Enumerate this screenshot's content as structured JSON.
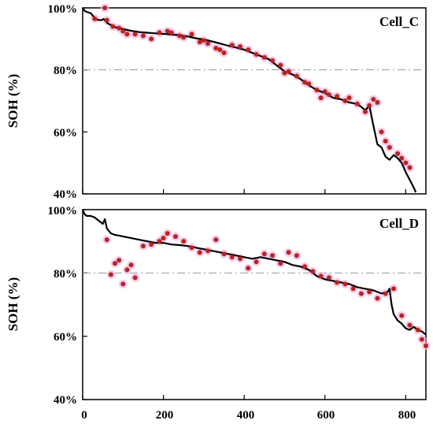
{
  "figure": {
    "x_tick_labels": [
      "0",
      "200",
      "400",
      "600",
      "800"
    ]
  },
  "colors": {
    "line": "#000000",
    "dots": "#b5261e",
    "dot_halo": "#f4b6e8",
    "reference_line": "#9a9a9a",
    "axes": "#000000"
  },
  "chart_data": [
    {
      "type": "line",
      "title": "Cell_C",
      "xlabel": "",
      "ylabel": "SOH (%)",
      "xlim": [
        0,
        850
      ],
      "ylim": [
        40,
        100
      ],
      "y_ticks": [
        "100%",
        "80%",
        "60%",
        "40%"
      ],
      "x_ticks": [
        0,
        200,
        400,
        600,
        800
      ],
      "reference_line": 80,
      "grid": false,
      "series": [
        {
          "kind": "line",
          "x": [
            0,
            5,
            12,
            20,
            28,
            35,
            45,
            52,
            58,
            62,
            70,
            80,
            92,
            105,
            120,
            140,
            160,
            180,
            200,
            220,
            240,
            260,
            280,
            300,
            320,
            340,
            360,
            380,
            400,
            420,
            440,
            460,
            480,
            500,
            520,
            540,
            560,
            580,
            600,
            620,
            640,
            660,
            680,
            700,
            710,
            720,
            730,
            740,
            750,
            760,
            770,
            780,
            790,
            800,
            810,
            820,
            825
          ],
          "y": [
            100,
            99.0,
            98.6,
            98.3,
            97.0,
            96.2,
            96.0,
            96.4,
            95.5,
            95.0,
            94.5,
            93.8,
            93.4,
            93.0,
            92.6,
            92.2,
            92.0,
            91.8,
            91.6,
            91.4,
            91.2,
            90.8,
            90.2,
            89.8,
            89.2,
            88.5,
            87.8,
            87.2,
            86.5,
            85.5,
            84.5,
            83.5,
            81.5,
            79.5,
            78.5,
            77.0,
            75.0,
            73.5,
            72.5,
            71.0,
            70.5,
            69.5,
            69.0,
            67.0,
            68.5,
            62.0,
            56.0,
            55.0,
            52.0,
            51.0,
            52.5,
            51.5,
            50.0,
            47.0,
            44.5,
            42.0,
            40.5
          ]
        },
        {
          "kind": "scatter",
          "x": [
            30,
            55,
            60,
            75,
            90,
            100,
            110,
            130,
            150,
            170,
            190,
            210,
            220,
            240,
            250,
            270,
            290,
            300,
            310,
            330,
            340,
            350,
            370,
            390,
            410,
            430,
            450,
            470,
            490,
            500,
            510,
            530,
            550,
            560,
            580,
            590,
            600,
            610,
            630,
            650,
            660,
            680,
            700,
            710,
            720,
            730,
            740,
            750,
            760,
            780,
            790,
            800,
            810
          ],
          "y": [
            96.5,
            100,
            96.0,
            94.0,
            93.5,
            92.5,
            91.5,
            91.5,
            91.0,
            90.0,
            92.0,
            92.5,
            92.0,
            91.0,
            90.5,
            91.5,
            89.0,
            89.5,
            88.5,
            87.0,
            86.5,
            85.5,
            88.0,
            87.5,
            86.5,
            85.0,
            84.0,
            83.0,
            81.5,
            79.0,
            79.5,
            78.0,
            76.0,
            75.5,
            73.5,
            71.0,
            73.0,
            72.0,
            71.5,
            70.0,
            71.0,
            69.0,
            66.5,
            68.5,
            70.5,
            69.5,
            60.0,
            57.0,
            55.0,
            53.0,
            51.5,
            50.0,
            48.5
          ]
        }
      ]
    },
    {
      "type": "line",
      "title": "Cell_D",
      "xlabel": "",
      "ylabel": "SOH (%)",
      "xlim": [
        0,
        850
      ],
      "ylim": [
        40,
        100
      ],
      "y_ticks": [
        "100%",
        "80%",
        "60%",
        "40%"
      ],
      "x_ticks": [
        0,
        200,
        400,
        600,
        800
      ],
      "reference_line": 80,
      "grid": false,
      "series": [
        {
          "kind": "line",
          "x": [
            0,
            5,
            10,
            20,
            30,
            40,
            50,
            55,
            60,
            70,
            80,
            90,
            100,
            120,
            140,
            160,
            180,
            200,
            220,
            240,
            260,
            280,
            300,
            320,
            340,
            360,
            380,
            400,
            420,
            440,
            460,
            480,
            500,
            520,
            540,
            560,
            580,
            600,
            620,
            640,
            660,
            680,
            700,
            720,
            740,
            755,
            760,
            765,
            770,
            780,
            790,
            800,
            810,
            820,
            830,
            840,
            850
          ],
          "y": [
            100,
            98.5,
            98.0,
            98.0,
            97.5,
            96.5,
            95.5,
            97.0,
            94.0,
            92.5,
            92.0,
            91.8,
            91.5,
            91.0,
            90.5,
            90.0,
            89.5,
            89.5,
            89.0,
            88.8,
            88.5,
            88.0,
            87.5,
            87.0,
            86.5,
            86.0,
            85.5,
            85.0,
            84.5,
            85.0,
            84.5,
            84.0,
            83.5,
            82.5,
            82.0,
            81.0,
            79.0,
            78.0,
            77.5,
            77.0,
            76.5,
            75.5,
            75.0,
            74.5,
            73.5,
            74.0,
            75.0,
            70.0,
            67.0,
            65.0,
            64.0,
            62.5,
            62.0,
            63.0,
            62.0,
            61.5,
            60.5
          ]
        },
        {
          "kind": "scatter",
          "x": [
            60,
            70,
            80,
            90,
            100,
            110,
            120,
            130,
            150,
            170,
            190,
            200,
            210,
            230,
            250,
            270,
            290,
            310,
            330,
            350,
            370,
            390,
            410,
            430,
            450,
            470,
            490,
            510,
            530,
            550,
            570,
            590,
            610,
            630,
            650,
            670,
            690,
            710,
            730,
            750,
            770,
            790,
            810,
            830,
            840,
            850
          ],
          "y": [
            90.5,
            79.5,
            83.0,
            84.0,
            76.5,
            81.0,
            82.5,
            78.5,
            88.5,
            89.0,
            90.0,
            91.0,
            92.5,
            91.5,
            90.0,
            88.0,
            86.5,
            87.0,
            90.5,
            86.0,
            85.0,
            84.5,
            81.5,
            83.5,
            86.0,
            85.5,
            83.0,
            86.5,
            85.5,
            82.0,
            80.5,
            79.0,
            78.5,
            77.0,
            76.5,
            75.0,
            73.5,
            74.0,
            72.0,
            73.5,
            75.0,
            66.5,
            63.5,
            62.0,
            59.0,
            57.0
          ]
        }
      ]
    }
  ]
}
